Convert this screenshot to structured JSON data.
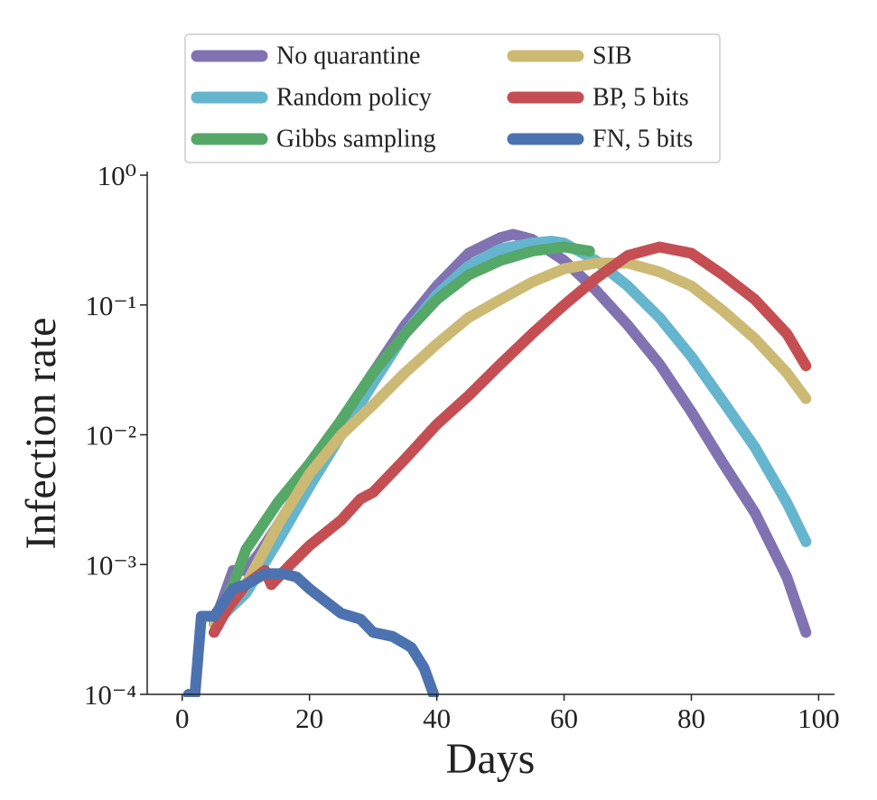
{
  "chart_data": {
    "type": "line",
    "xlabel": "Days",
    "ylabel": "Infection rate",
    "xlim": [
      -5.5,
      102.5
    ],
    "xticks": [
      0,
      20,
      40,
      60,
      80,
      100
    ],
    "ylim": [
      0.0001,
      1
    ],
    "yscale": "log",
    "yticks": [
      {
        "value": 1,
        "label": "10⁰"
      },
      {
        "value": 0.1,
        "label": "10⁻¹"
      },
      {
        "value": 0.01,
        "label": "10⁻²"
      },
      {
        "value": 0.001,
        "label": "10⁻³"
      },
      {
        "value": 0.0001,
        "label": "10⁻⁴"
      }
    ],
    "legend": "upper center",
    "series": [
      {
        "name": "No quarantine",
        "color": "#8172b2",
        "x": [
          5,
          8,
          10,
          12,
          15,
          20,
          25,
          30,
          35,
          40,
          45,
          50,
          52,
          55,
          60,
          65,
          70,
          75,
          80,
          85,
          90,
          95,
          98
        ],
        "values": [
          0.00035,
          0.0009,
          0.0009,
          0.0012,
          0.002,
          0.005,
          0.013,
          0.03,
          0.07,
          0.14,
          0.25,
          0.33,
          0.35,
          0.32,
          0.22,
          0.13,
          0.07,
          0.035,
          0.015,
          0.006,
          0.0025,
          0.0008,
          0.0003
        ]
      },
      {
        "name": "Random policy",
        "color": "#64b5cd",
        "x": [
          5,
          10,
          15,
          20,
          25,
          30,
          35,
          40,
          45,
          50,
          55,
          58,
          60,
          65,
          70,
          75,
          80,
          85,
          90,
          95,
          98
        ],
        "values": [
          0.00035,
          0.0006,
          0.0015,
          0.004,
          0.01,
          0.025,
          0.06,
          0.12,
          0.2,
          0.27,
          0.3,
          0.31,
          0.3,
          0.22,
          0.14,
          0.08,
          0.04,
          0.018,
          0.008,
          0.003,
          0.0015
        ]
      },
      {
        "name": "Gibbs sampling",
        "color": "#55a868",
        "x": [
          5,
          8,
          10,
          15,
          20,
          25,
          30,
          35,
          40,
          45,
          50,
          55,
          60,
          64
        ],
        "values": [
          0.00035,
          0.0007,
          0.0013,
          0.003,
          0.006,
          0.013,
          0.03,
          0.06,
          0.11,
          0.17,
          0.22,
          0.26,
          0.28,
          0.26
        ]
      },
      {
        "name": "SIB",
        "color": "#ccb974",
        "x": [
          5,
          10,
          15,
          20,
          25,
          30,
          35,
          40,
          45,
          50,
          55,
          60,
          65,
          70,
          75,
          80,
          85,
          90,
          95,
          98
        ],
        "values": [
          0.00035,
          0.0007,
          0.002,
          0.005,
          0.01,
          0.017,
          0.03,
          0.05,
          0.08,
          0.11,
          0.15,
          0.19,
          0.21,
          0.21,
          0.18,
          0.14,
          0.09,
          0.055,
          0.03,
          0.019
        ]
      },
      {
        "name": "BP, 5 bits",
        "color": "#c44e52",
        "x": [
          5,
          7,
          10,
          13,
          14,
          17,
          20,
          25,
          28,
          30,
          35,
          40,
          45,
          50,
          55,
          60,
          65,
          70,
          75,
          80,
          85,
          90,
          95,
          98
        ],
        "values": [
          0.0003,
          0.00045,
          0.0007,
          0.0009,
          0.0007,
          0.001,
          0.0014,
          0.0022,
          0.0032,
          0.0036,
          0.0065,
          0.012,
          0.02,
          0.035,
          0.06,
          0.1,
          0.16,
          0.24,
          0.28,
          0.25,
          0.17,
          0.11,
          0.06,
          0.034
        ]
      },
      {
        "name": "FN, 5 bits",
        "color": "#4c72b0",
        "x": [
          1,
          2,
          3,
          5,
          8,
          10,
          13,
          16,
          18,
          20,
          23,
          25,
          28,
          30,
          33,
          36,
          38,
          39.5
        ],
        "values": [
          0.0001,
          0.0001,
          0.0004,
          0.0004,
          0.00065,
          0.0007,
          0.00085,
          0.00085,
          0.0008,
          0.00065,
          0.0005,
          0.00042,
          0.00038,
          0.0003,
          0.00028,
          0.00023,
          0.00016,
          0.0001
        ]
      }
    ]
  }
}
